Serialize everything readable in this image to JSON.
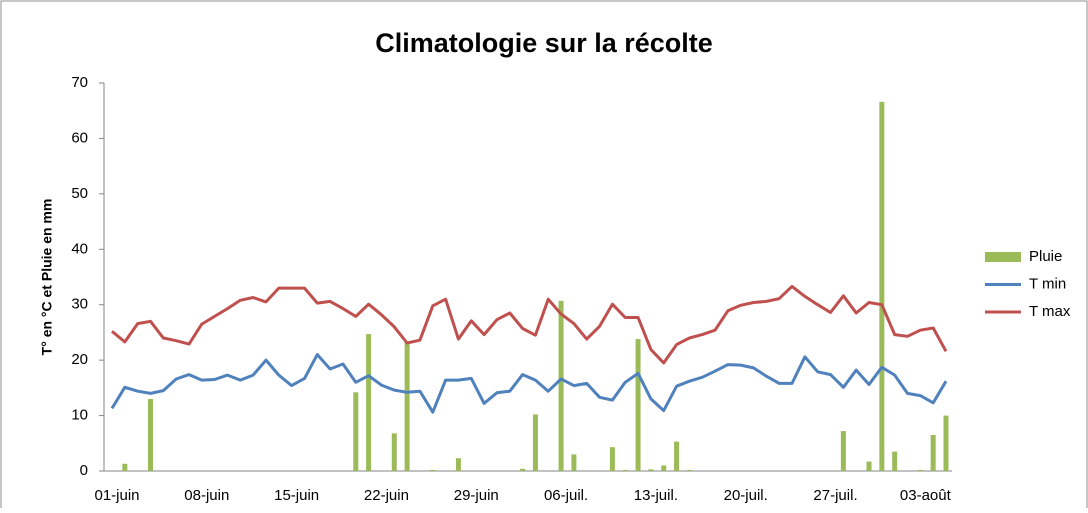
{
  "chart_data": {
    "type": "bar-line",
    "title": "Climatologie sur la récolte",
    "y_label": "T° en °C et Pluie en mm",
    "categories": [
      "01-juin",
      null,
      null,
      null,
      null,
      null,
      null,
      "08-juin",
      null,
      null,
      null,
      null,
      null,
      null,
      "15-juin",
      null,
      null,
      null,
      null,
      null,
      null,
      "22-juin",
      null,
      null,
      null,
      null,
      null,
      null,
      "29-juin",
      null,
      null,
      null,
      null,
      null,
      null,
      "06-juil.",
      null,
      null,
      null,
      null,
      null,
      null,
      "13-juil.",
      null,
      null,
      null,
      null,
      null,
      null,
      "20-juil.",
      null,
      null,
      null,
      null,
      null,
      null,
      "27-juil.",
      null,
      null,
      null,
      null,
      null,
      null,
      "03-août",
      null,
      null
    ],
    "series": [
      {
        "name": "Pluie",
        "kind": "bar",
        "color": "#9bbb59",
        "values": [
          0,
          1.3,
          0,
          13,
          0,
          0,
          0,
          0,
          0,
          0,
          0,
          0,
          0,
          0,
          0,
          0,
          0,
          0,
          0,
          14.2,
          24.7,
          0,
          6.8,
          23.2,
          0,
          0.2,
          0,
          2.3,
          0,
          0,
          0,
          0,
          0.4,
          10.2,
          0,
          30.7,
          3,
          0,
          0,
          4.3,
          0.2,
          23.8,
          0.3,
          1,
          5.3,
          0.2,
          0,
          0,
          0,
          0,
          0,
          0,
          0,
          0,
          0,
          0,
          0,
          7.2,
          0,
          1.7,
          66.6,
          3.5,
          0,
          0.2,
          6.5,
          10
        ]
      },
      {
        "name": "T min",
        "kind": "line",
        "color": "#4f81bd",
        "values": [
          11.3,
          15.1,
          14.4,
          14,
          14.5,
          16.6,
          17.4,
          16.4,
          16.5,
          17.3,
          16.4,
          17.3,
          20,
          17.3,
          15.4,
          16.7,
          21,
          18.4,
          19.3,
          16,
          17.2,
          15.5,
          14.6,
          14.2,
          14.4,
          10.6,
          16.4,
          16.4,
          16.7,
          12.2,
          14.1,
          14.4,
          17.4,
          16.4,
          14.4,
          16.6,
          15.4,
          15.8,
          13.3,
          12.8,
          16,
          17.6,
          13,
          10.9,
          15.3,
          16.2,
          16.9,
          18,
          19.2,
          19.1,
          18.6,
          17.1,
          15.8,
          15.8,
          20.6,
          17.9,
          17.4,
          15.1,
          18.2,
          15.6,
          18.7,
          17.3,
          14,
          13.6,
          12.3,
          16.2
        ]
      },
      {
        "name": "T max",
        "kind": "line",
        "color": "#c0504d",
        "values": [
          25.2,
          23.3,
          26.6,
          27,
          24,
          23.5,
          22.9,
          26.5,
          27.9,
          29.3,
          30.8,
          31.3,
          30.5,
          33,
          33,
          33,
          30.3,
          30.6,
          29.3,
          27.9,
          30.1,
          28.2,
          26,
          23.1,
          23.6,
          29.8,
          31,
          23.8,
          27.1,
          24.6,
          27.3,
          28.5,
          25.7,
          24.5,
          31,
          28.3,
          26.6,
          23.8,
          26.1,
          30.1,
          27.7,
          27.7,
          21.9,
          19.5,
          22.8,
          24,
          24.6,
          25.4,
          28.9,
          29.9,
          30.4,
          30.6,
          31.1,
          33.3,
          31.5,
          30,
          28.6,
          31.6,
          28.5,
          30.4,
          30,
          24.6,
          24.3,
          25.4,
          25.8,
          21.6
        ]
      }
    ],
    "ylim": [
      0,
      70
    ],
    "yticks": [
      0,
      10,
      20,
      30,
      40,
      50,
      60,
      70
    ],
    "grid": false,
    "legend": "right"
  }
}
